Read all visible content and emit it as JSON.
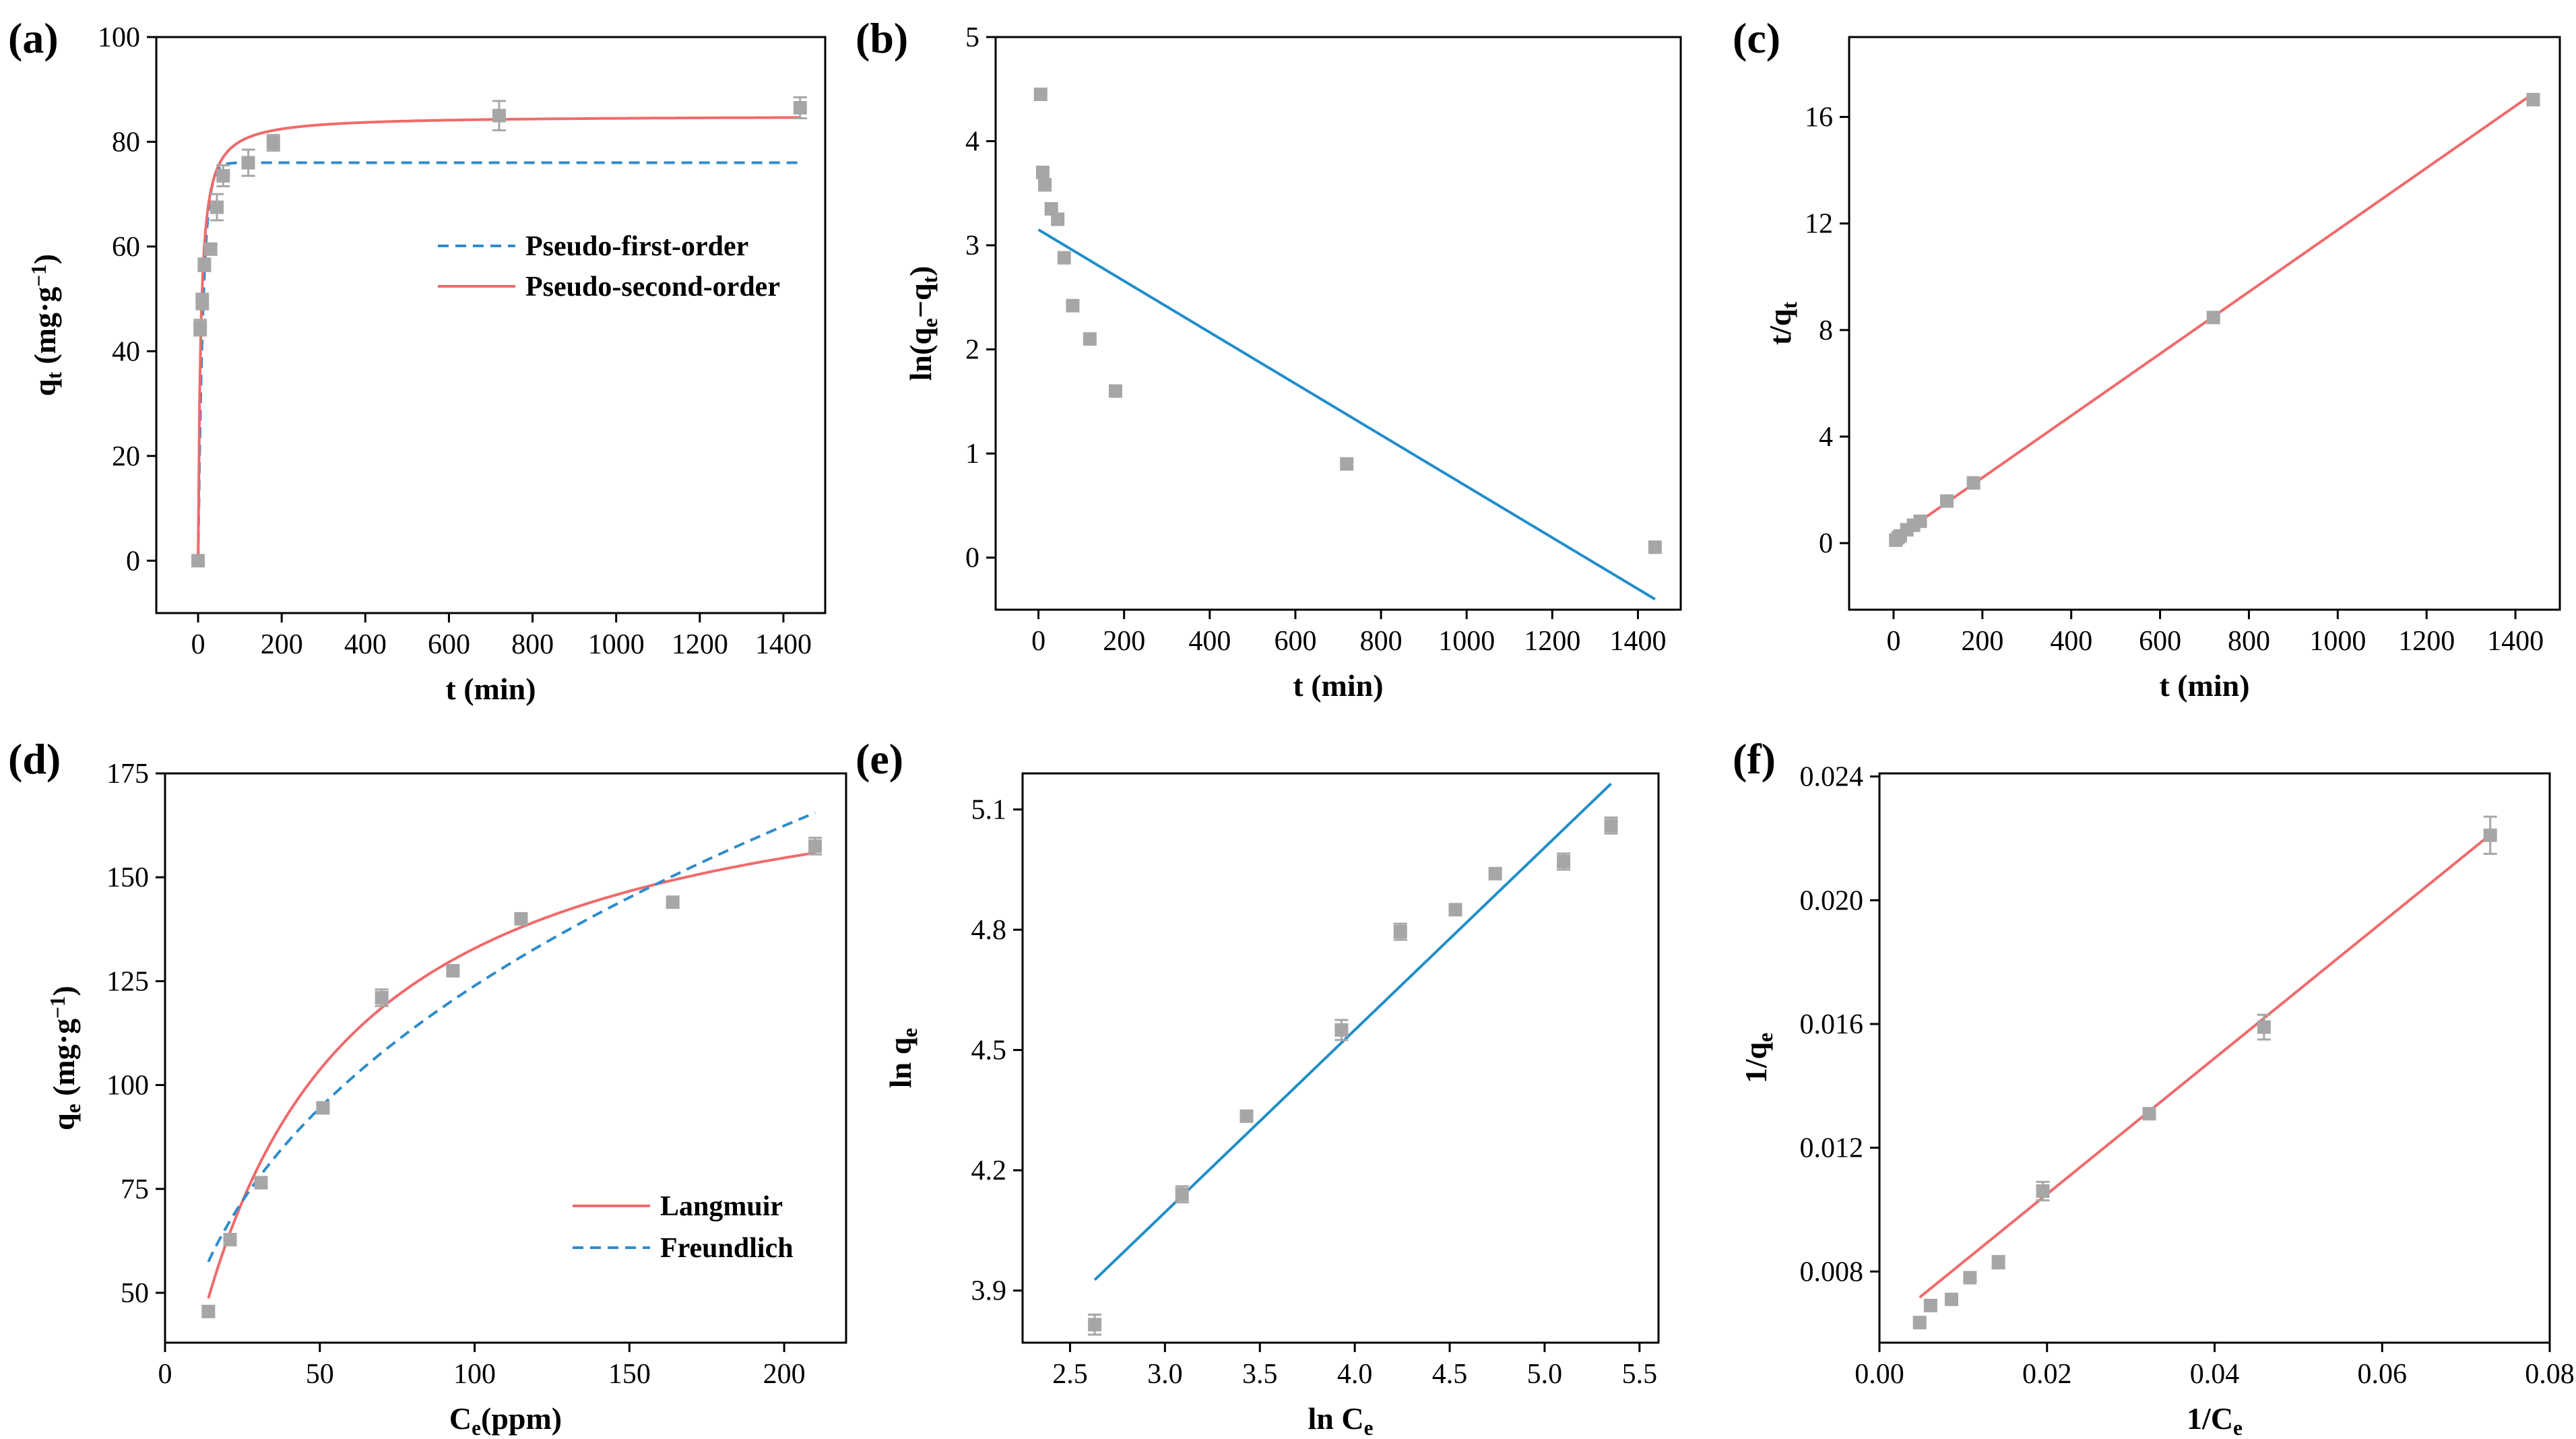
{
  "chart_data": [
    {
      "id": "a",
      "type": "scatter",
      "panel_label": "(a)",
      "xlabel": "t (min)",
      "ylabel_html": [
        "q",
        "t",
        " (mg·g",
        "−1",
        ")"
      ],
      "xlim": [
        -100,
        1500
      ],
      "ylim": [
        -10,
        100
      ],
      "xticks": [
        0,
        200,
        400,
        600,
        800,
        1000,
        1200,
        1400
      ],
      "yticks": [
        0,
        20,
        40,
        60,
        80,
        100
      ],
      "tick_decimals": 0,
      "points": [
        {
          "x": 0,
          "y": 0,
          "err": 0
        },
        {
          "x": 5,
          "y": 44.5,
          "err": 1.5
        },
        {
          "x": 10,
          "y": 49.5,
          "err": 1.5
        },
        {
          "x": 15,
          "y": 56.5,
          "err": 1.2
        },
        {
          "x": 30,
          "y": 59.5,
          "err": 1.0
        },
        {
          "x": 45,
          "y": 67.5,
          "err": 2.5
        },
        {
          "x": 60,
          "y": 73.5,
          "err": 2.0
        },
        {
          "x": 120,
          "y": 76.0,
          "err": 2.5
        },
        {
          "x": 180,
          "y": 79.8,
          "err": 1.5
        },
        {
          "x": 720,
          "y": 85.0,
          "err": 2.8
        },
        {
          "x": 1440,
          "y": 86.5,
          "err": 2.0
        }
      ],
      "fits": [
        {
          "name": "Pseudo-first-order",
          "model": "pfo",
          "qe": 76.0,
          "k": 0.085,
          "x_range": [
            0,
            1440
          ],
          "color": "#2e8ccc",
          "dashed": true
        },
        {
          "name": "Pseudo-second-order",
          "model": "pso",
          "qe": 85.0,
          "k": 0.0019,
          "x_range": [
            0,
            1440
          ],
          "color": "#f06a6a",
          "dashed": false
        }
      ],
      "legend_position": "center-right"
    },
    {
      "id": "b",
      "type": "scatter",
      "panel_label": "(b)",
      "xlabel": "t (min)",
      "ylabel_html": [
        "ln(q",
        "e",
        "−q",
        "t",
        ")"
      ],
      "xlim": [
        -100,
        1500
      ],
      "ylim": [
        -0.5,
        5
      ],
      "xticks": [
        0,
        200,
        400,
        600,
        800,
        1000,
        1200,
        1400
      ],
      "yticks": [
        0,
        1,
        2,
        3,
        4,
        5
      ],
      "tick_decimals": 0,
      "points": [
        {
          "x": 5,
          "y": 4.45,
          "err": 0
        },
        {
          "x": 10,
          "y": 3.7,
          "err": 0
        },
        {
          "x": 15,
          "y": 3.58,
          "err": 0
        },
        {
          "x": 30,
          "y": 3.35,
          "err": 0
        },
        {
          "x": 45,
          "y": 3.25,
          "err": 0
        },
        {
          "x": 60,
          "y": 2.88,
          "err": 0
        },
        {
          "x": 80,
          "y": 2.42,
          "err": 0
        },
        {
          "x": 120,
          "y": 2.1,
          "err": 0
        },
        {
          "x": 180,
          "y": 1.6,
          "err": 0
        },
        {
          "x": 720,
          "y": 0.9,
          "err": 0
        },
        {
          "x": 1440,
          "y": 0.1,
          "err": 0
        }
      ],
      "fits": [
        {
          "name": "linear",
          "model": "line",
          "slope": -0.002465,
          "intercept": 3.15,
          "x_range": [
            0,
            1440
          ],
          "color": "#1f8ec9",
          "dashed": false
        }
      ]
    },
    {
      "id": "c",
      "type": "scatter",
      "panel_label": "(c)",
      "xlabel": "t (min)",
      "ylabel_html": [
        "t/q",
        "t",
        ""
      ],
      "xlim": [
        -100,
        1500
      ],
      "ylim": [
        -2.5,
        19
      ],
      "xticks": [
        0,
        200,
        400,
        600,
        800,
        1000,
        1200,
        1400
      ],
      "yticks": [
        0,
        4,
        8,
        12,
        16
      ],
      "tick_decimals": 0,
      "points": [
        {
          "x": 5,
          "y": 0.11,
          "err": 0
        },
        {
          "x": 10,
          "y": 0.2,
          "err": 0
        },
        {
          "x": 15,
          "y": 0.27,
          "err": 0
        },
        {
          "x": 30,
          "y": 0.5,
          "err": 0
        },
        {
          "x": 45,
          "y": 0.67,
          "err": 0
        },
        {
          "x": 60,
          "y": 0.82,
          "err": 0
        },
        {
          "x": 120,
          "y": 1.58,
          "err": 0
        },
        {
          "x": 180,
          "y": 2.26,
          "err": 0
        },
        {
          "x": 720,
          "y": 8.47,
          "err": 0
        },
        {
          "x": 1440,
          "y": 16.65,
          "err": 0
        }
      ],
      "fits": [
        {
          "name": "linear",
          "model": "line",
          "slope": 0.01163,
          "intercept": 0.13,
          "x_range": [
            0,
            1440
          ],
          "color": "#f06a6a",
          "dashed": false
        }
      ]
    },
    {
      "id": "d",
      "type": "scatter",
      "panel_label": "(d)",
      "xlabel_html": [
        "C",
        "e",
        "(ppm)"
      ],
      "ylabel_html": [
        "q",
        "e",
        " (mg·g",
        "−1",
        ")"
      ],
      "xlim": [
        0,
        220
      ],
      "ylim": [
        38,
        175
      ],
      "xticks": [
        0,
        50,
        100,
        150,
        200
      ],
      "yticks": [
        50,
        75,
        100,
        125,
        150,
        175
      ],
      "tick_decimals": 0,
      "points": [
        {
          "x": 14,
          "y": 45.5,
          "err": 1.2
        },
        {
          "x": 21,
          "y": 62.8,
          "err": 1.0
        },
        {
          "x": 31,
          "y": 76.5,
          "err": 1.0
        },
        {
          "x": 51,
          "y": 94.5,
          "err": 1.2
        },
        {
          "x": 70,
          "y": 121.0,
          "err": 2.0
        },
        {
          "x": 93,
          "y": 127.5,
          "err": 1.0
        },
        {
          "x": 115,
          "y": 140.0,
          "err": 1.0
        },
        {
          "x": 164,
          "y": 144.0,
          "err": 1.2
        },
        {
          "x": 210,
          "y": 157.5,
          "err": 2.0
        }
      ],
      "fits": [
        {
          "name": "Langmuir",
          "model": "langmuir",
          "qm": 185.0,
          "KL": 0.0255,
          "x_range": [
            14,
            210
          ],
          "color": "#f06a6a",
          "dashed": false
        },
        {
          "name": "Freundlich",
          "model": "freundlich",
          "KF": 20.5,
          "n": 2.56,
          "x_range": [
            14,
            210
          ],
          "color": "#2e8ccc",
          "dashed": true
        }
      ],
      "legend_position": "bottom-right"
    },
    {
      "id": "e",
      "type": "scatter",
      "panel_label": "(e)",
      "xlabel_html": [
        "ln C",
        "e",
        ""
      ],
      "ylabel_html": [
        "ln q",
        "e",
        ""
      ],
      "xlim": [
        2.25,
        5.6
      ],
      "ylim": [
        3.77,
        5.19
      ],
      "xticks": [
        2.5,
        3.0,
        3.5,
        4.0,
        4.5,
        5.0,
        5.5
      ],
      "yticks": [
        3.9,
        4.2,
        4.5,
        4.8,
        5.1
      ],
      "tick_decimals": 1,
      "points": [
        {
          "x": 2.63,
          "y": 3.815,
          "err": 0.025
        },
        {
          "x": 3.09,
          "y": 4.14,
          "err": 0.02
        },
        {
          "x": 3.43,
          "y": 4.335,
          "err": 0.01
        },
        {
          "x": 3.93,
          "y": 4.55,
          "err": 0.025
        },
        {
          "x": 4.24,
          "y": 4.795,
          "err": 0.02
        },
        {
          "x": 4.53,
          "y": 4.85,
          "err": 0.01
        },
        {
          "x": 4.74,
          "y": 4.94,
          "err": 0.01
        },
        {
          "x": 5.1,
          "y": 4.97,
          "err": 0.02
        },
        {
          "x": 5.35,
          "y": 5.06,
          "err": 0.02
        }
      ],
      "fits": [
        {
          "name": "linear",
          "model": "line",
          "slope": 0.455,
          "intercept": 2.73,
          "x_range": [
            2.63,
            5.35
          ],
          "color": "#1f8ec9",
          "dashed": false
        }
      ]
    },
    {
      "id": "f",
      "type": "scatter",
      "panel_label": "(f)",
      "xlabel_html": [
        "1/C",
        "e",
        ""
      ],
      "ylabel_html": [
        "1/q",
        "e",
        ""
      ],
      "xlim": [
        0,
        0.08
      ],
      "ylim": [
        0.0057,
        0.0241
      ],
      "xticks": [
        0.0,
        0.02,
        0.04,
        0.06,
        0.08
      ],
      "yticks": [
        0.008,
        0.012,
        0.016,
        0.02,
        0.024
      ],
      "xtick_decimals": 2,
      "ytick_decimals": 3,
      "points": [
        {
          "x": 0.0048,
          "y": 0.00635,
          "err": 0.00015
        },
        {
          "x": 0.0061,
          "y": 0.0069,
          "err": 0.00015
        },
        {
          "x": 0.0086,
          "y": 0.0071,
          "err": 0.0001
        },
        {
          "x": 0.0108,
          "y": 0.0078,
          "err": 0.0001
        },
        {
          "x": 0.0142,
          "y": 0.0083,
          "err": 0.0002
        },
        {
          "x": 0.0195,
          "y": 0.0106,
          "err": 0.0003
        },
        {
          "x": 0.0322,
          "y": 0.0131,
          "err": 0.0001
        },
        {
          "x": 0.0459,
          "y": 0.0159,
          "err": 0.0004
        },
        {
          "x": 0.0729,
          "y": 0.0221,
          "err": 0.0006
        }
      ],
      "fits": [
        {
          "name": "linear",
          "model": "line",
          "slope": 0.2196,
          "intercept": 0.00611,
          "x_range": [
            0.0048,
            0.0729
          ],
          "color": "#f06a6a",
          "dashed": false
        }
      ]
    }
  ]
}
